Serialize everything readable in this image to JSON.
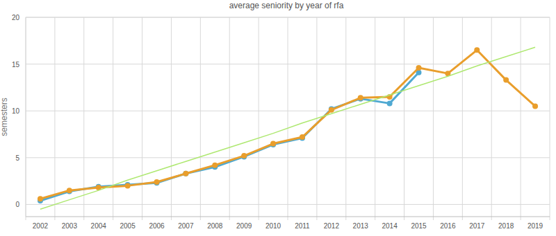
{
  "chart_data": {
    "type": "line",
    "title": "average seniority by year of rfa",
    "y_label": "semesters",
    "categories": [
      "2002",
      "2003",
      "2004",
      "2005",
      "2006",
      "2007",
      "2008",
      "2009",
      "2010",
      "2011",
      "2012",
      "2013",
      "2014",
      "2015",
      "2016",
      "2017",
      "2018",
      "2019"
    ],
    "series": [
      {
        "color": "#4fa9d2",
        "marker": "circle",
        "line_style": "solid",
        "values": [
          0.4,
          1.4,
          1.9,
          2.1,
          2.3,
          3.3,
          4.0,
          5.1,
          6.4,
          7.1,
          10.2,
          11.3,
          10.8,
          14.1,
          null,
          null,
          null,
          null
        ]
      },
      {
        "color": "#e99e2c",
        "marker": "circle",
        "line_style": "solid",
        "values": [
          0.6,
          1.5,
          1.8,
          2.0,
          2.4,
          3.3,
          4.2,
          5.2,
          6.5,
          7.2,
          10.1,
          11.4,
          11.5,
          14.6,
          14.0,
          16.5,
          13.3,
          10.5
        ]
      },
      {
        "color": "#aee870",
        "marker": "none",
        "line_style": "solid",
        "values": [
          -0.5,
          0.5,
          1.5,
          2.6,
          3.6,
          4.6,
          5.6,
          6.6,
          7.6,
          8.7,
          9.7,
          10.7,
          11.7,
          12.7,
          13.7,
          14.8,
          15.8,
          16.8
        ]
      }
    ],
    "ylim": [
      -1.3,
      20
    ],
    "yticks": [
      0,
      5,
      10,
      15,
      20
    ],
    "grid": true
  }
}
